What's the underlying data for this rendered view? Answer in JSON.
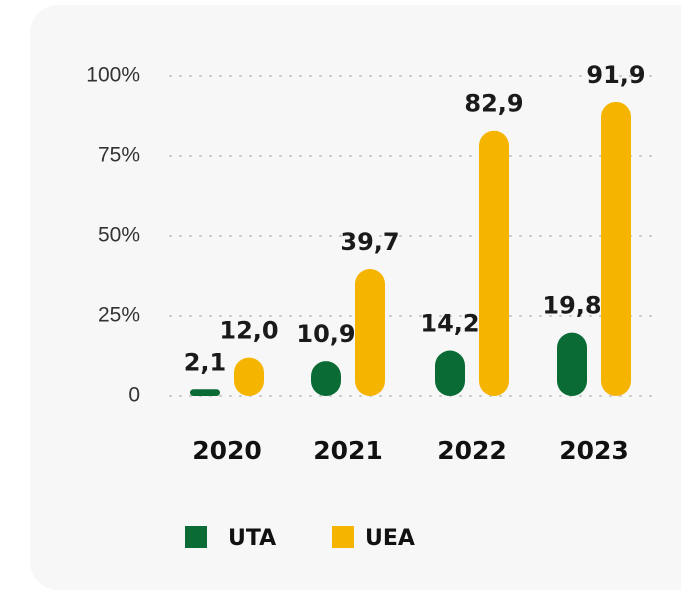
{
  "chart_data": {
    "type": "bar",
    "categories": [
      "2020",
      "2021",
      "2022",
      "2023"
    ],
    "series": [
      {
        "name": "UTA",
        "color": "#0a6b35",
        "values": [
          2.1,
          10.9,
          14.2,
          19.8
        ],
        "value_labels": [
          "2,1",
          "10,9",
          "14,2",
          "19,8"
        ]
      },
      {
        "name": "UEA",
        "color": "#f5b400",
        "values": [
          12.0,
          39.7,
          82.9,
          91.9
        ],
        "value_labels": [
          "12,0",
          "39,7",
          "82,9",
          "91,9"
        ]
      }
    ],
    "ylim": [
      0,
      100
    ],
    "yticks": [
      0,
      {
        "value": 25,
        "label": "25%"
      },
      {
        "value": 50,
        "label": "50%"
      },
      {
        "value": 75,
        "label": "75%"
      },
      {
        "value": 100,
        "label": "100%"
      }
    ],
    "grid": true,
    "legend": "bottom"
  }
}
